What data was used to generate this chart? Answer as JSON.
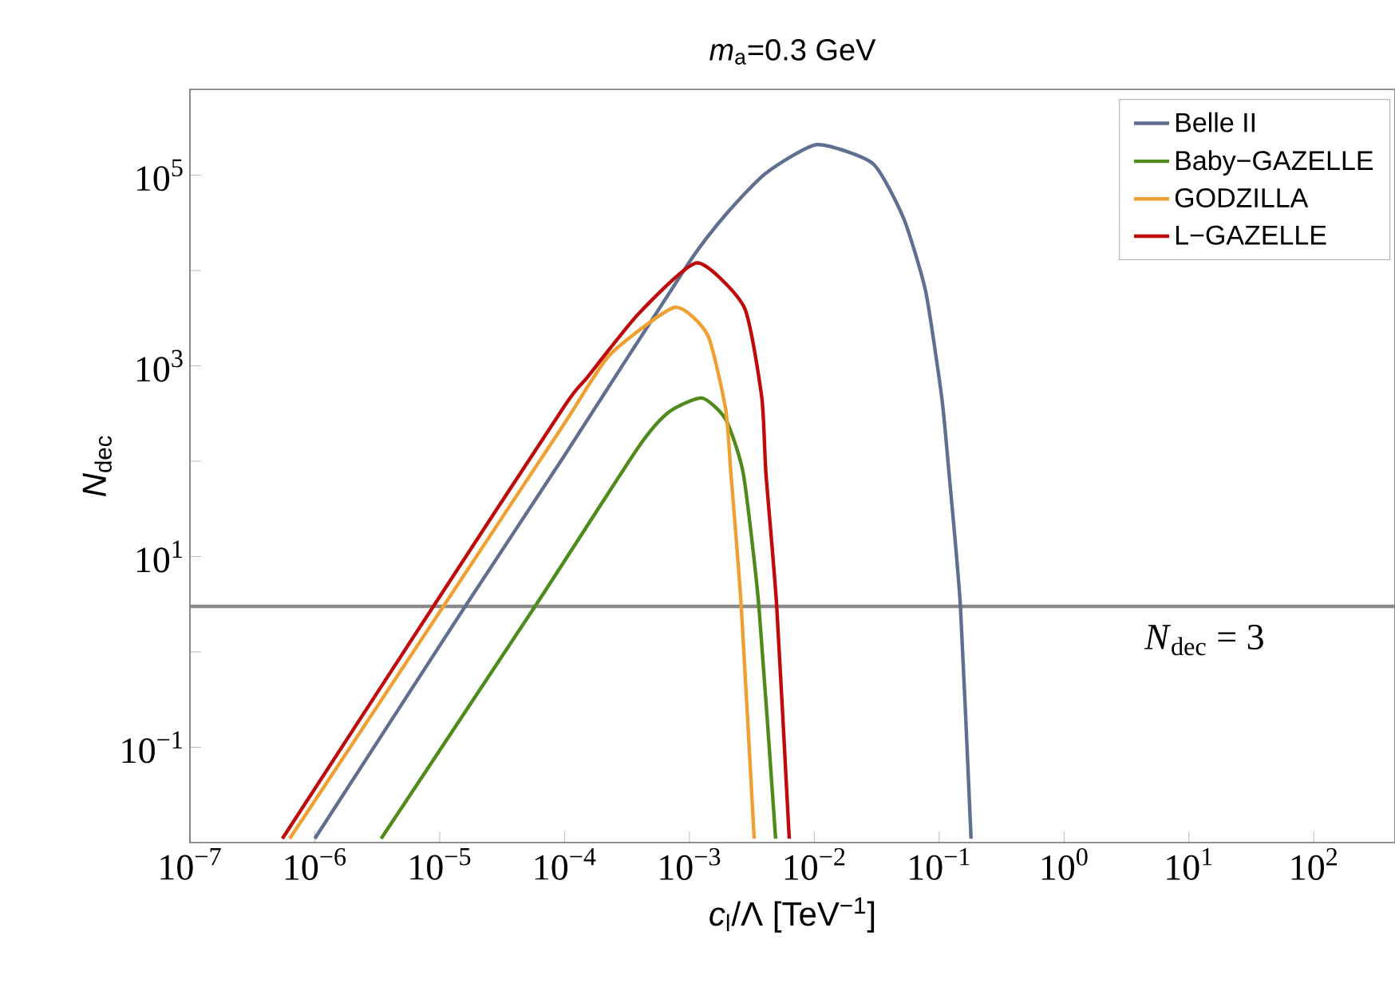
{
  "chart_data": {
    "type": "line",
    "title": "*m*$_{a}$=0.3 GeV",
    "xlabel": "*c*$_{l}$/Λ [TeV$^{−1}$]",
    "ylabel": "*N*$_{dec}$",
    "log": "xy",
    "legend": "top right",
    "marker": "none",
    "line_style": "solid",
    "xlim": [
      1e-07,
      447
    ],
    "ylim": [
      0.01,
      794000
    ],
    "xticks": [
      {
        "value": 1e-07,
        "label": "10$^{−7}$"
      },
      {
        "value": 1e-06,
        "label": "10$^{−6}$"
      },
      {
        "value": 1e-05,
        "label": "10$^{−5}$"
      },
      {
        "value": 0.0001,
        "label": "10$^{−4}$"
      },
      {
        "value": 0.001,
        "label": "10$^{−3}$"
      },
      {
        "value": 0.01,
        "label": "10$^{−2}$"
      },
      {
        "value": 0.1,
        "label": "10$^{−1}$"
      },
      {
        "value": 1,
        "label": "10$^{0}$"
      },
      {
        "value": 10,
        "label": "10$^{1}$"
      },
      {
        "value": 100,
        "label": "10$^{2}$"
      }
    ],
    "yticks": [
      {
        "value": 0.1,
        "label": "10$^{−1}$"
      },
      {
        "value": 1,
        "label": null
      },
      {
        "value": 10,
        "label": "10$^{1}$"
      },
      {
        "value": 100,
        "label": null
      },
      {
        "value": 1000,
        "label": "10$^{3}$"
      },
      {
        "value": 10000,
        "label": null
      },
      {
        "value": 100000,
        "label": "10$^{5}$"
      }
    ],
    "ref_lines": [
      {
        "axis": "y",
        "value": 3,
        "label": "*N*$_{dec}$ = 3",
        "color": "#8a8a8a"
      }
    ],
    "series": [
      {
        "name": "Belle II",
        "color": "#5f6f8f",
        "x": [
          1e-06,
          1.6e-05,
          0.0001,
          0.001,
          0.002,
          0.0041,
          0.0105,
          0.0295,
          0.052,
          0.078,
          0.105,
          0.12,
          0.148,
          0.18
        ],
        "values": [
          0.011,
          3,
          115,
          12300,
          40000,
          105000,
          209000,
          132000,
          35000,
          6000,
          460,
          74,
          3,
          0.011
        ]
      },
      {
        "name": "Baby−GAZELLE",
        "color": "#4f8a1c",
        "x": [
          3.4e-06,
          5.8e-05,
          0.00039,
          0.00069,
          0.00126,
          0.00195,
          0.0027,
          0.0036,
          0.0049
        ],
        "values": [
          0.011,
          3,
          140,
          330,
          460,
          275,
          74,
          3,
          0.011
        ]
      },
      {
        "name": "GODZILLA",
        "color": "#f0a030",
        "x": [
          6.3e-07,
          1.07e-05,
          0.0001,
          0.00023,
          0.00076,
          0.0014,
          0.00195,
          0.00215,
          0.0026,
          0.0033
        ],
        "values": [
          0.011,
          3,
          250,
          1300,
          4100,
          2100,
          350,
          74,
          3,
          0.011
        ]
      },
      {
        "name": "L−GAZELLE",
        "color": "#c00a0a",
        "x": [
          5.5e-07,
          8.9e-06,
          0.0001,
          0.00015,
          0.00039,
          0.00115,
          0.00275,
          0.0038,
          0.0041,
          0.005,
          0.0063
        ],
        "values": [
          0.011,
          3,
          380,
          740,
          3500,
          12000,
          4100,
          460,
          74,
          3,
          0.011
        ]
      }
    ]
  }
}
